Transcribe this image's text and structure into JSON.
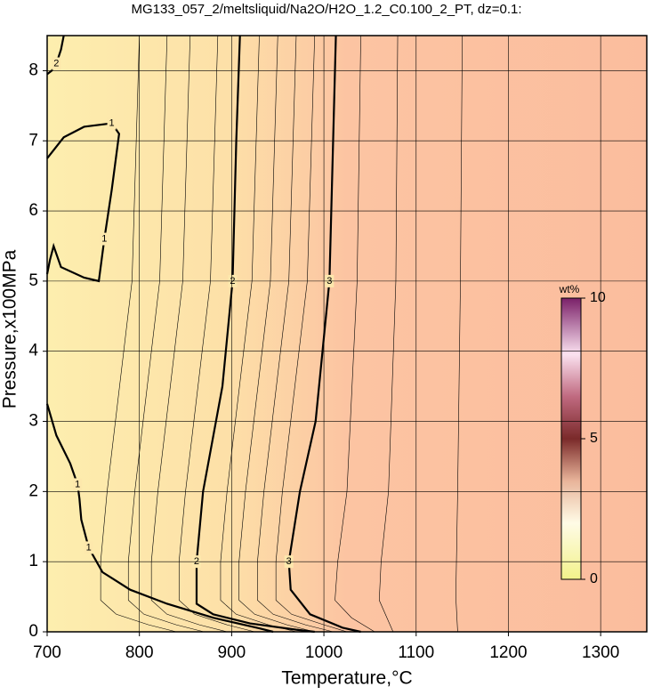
{
  "chart_data": {
    "type": "contour",
    "title": "MG133_057_2/meltsliquid/Na2O/H2O_1.2_C0.100_2_PT, dz=0.1:",
    "x_label": "Temperature,°C",
    "y_label": "Pressure,x100MPa",
    "xlim": [
      700,
      1350
    ],
    "ylim": [
      0,
      8.5
    ],
    "xticks": [
      700,
      800,
      900,
      1000,
      1100,
      1200,
      1300
    ],
    "yticks": [
      0,
      1,
      2,
      3,
      4,
      5,
      6,
      7,
      8
    ],
    "grid": true,
    "colorbar": {
      "label": "wt%",
      "lim": [
        0,
        10
      ],
      "ticks": [
        0,
        5,
        10
      ]
    },
    "contours": [
      {
        "level": 1,
        "x": [
          700,
          718,
          740,
          770,
          778,
          775,
          770,
          762,
          756,
          740,
          715,
          707,
          703,
          700
        ],
        "y": [
          6.75,
          7.05,
          7.2,
          7.25,
          7.1,
          6.8,
          6.3,
          5.6,
          5.0,
          5.05,
          5.2,
          5.5,
          5.3,
          5.1
        ]
      },
      {
        "level": 1,
        "x": [
          700,
          710,
          725,
          733,
          735,
          737,
          745,
          760,
          790,
          830,
          880,
          930,
          945
        ],
        "y": [
          3.25,
          2.8,
          2.4,
          2.1,
          1.9,
          1.6,
          1.2,
          0.85,
          0.6,
          0.4,
          0.2,
          0.05,
          0
        ]
      },
      {
        "level": 2,
        "x": [
          909,
          905,
          901,
          890,
          869,
          862,
          862,
          880,
          920,
          970,
          990
        ],
        "y": [
          8.5,
          7,
          5,
          3.5,
          2,
          1,
          0.4,
          0.25,
          0.12,
          0.03,
          0
        ]
      },
      {
        "level": 2,
        "x": [
          718,
          715,
          710,
          705,
          700
        ],
        "y": [
          8.5,
          8.3,
          8.1,
          8.0,
          7.95
        ]
      },
      {
        "level": 3,
        "x": [
          1013,
          1010,
          1006,
          991,
          974,
          962,
          964,
          985,
          1020,
          1040
        ],
        "y": [
          8.5,
          7,
          5,
          3,
          2,
          1,
          0.6,
          0.25,
          0.06,
          0
        ]
      }
    ],
    "minor_contours": [
      {
        "level": 1.2,
        "x": [
          800,
          792,
          765,
          758,
          758,
          775,
          810,
          840
        ],
        "y": [
          8.5,
          5,
          2,
          1,
          0.45,
          0.25,
          0.1,
          0
        ]
      },
      {
        "level": 1.4,
        "x": [
          830,
          822,
          795,
          788,
          788,
          805,
          840,
          870
        ],
        "y": [
          8.5,
          5,
          2,
          1,
          0.45,
          0.25,
          0.1,
          0
        ]
      },
      {
        "level": 1.6,
        "x": [
          855,
          847,
          820,
          813,
          813,
          830,
          865,
          895
        ],
        "y": [
          8.5,
          5,
          2,
          1,
          0.45,
          0.25,
          0.1,
          0
        ]
      },
      {
        "level": 1.8,
        "x": [
          885,
          877,
          850,
          843,
          843,
          860,
          895,
          925
        ],
        "y": [
          8.5,
          5,
          2,
          1,
          0.45,
          0.25,
          0.1,
          0
        ]
      },
      {
        "level": 2.2,
        "x": [
          930,
          922,
          895,
          888,
          888,
          905,
          940,
          970
        ],
        "y": [
          8.5,
          5,
          2,
          1,
          0.45,
          0.25,
          0.1,
          0
        ]
      },
      {
        "level": 2.4,
        "x": [
          950,
          942,
          915,
          908,
          908,
          925,
          960,
          990
        ],
        "y": [
          8.5,
          5,
          2,
          1,
          0.45,
          0.25,
          0.1,
          0
        ]
      },
      {
        "level": 2.6,
        "x": [
          970,
          962,
          935,
          928,
          928,
          945,
          980,
          1010
        ],
        "y": [
          8.5,
          5,
          2,
          1,
          0.45,
          0.25,
          0.1,
          0
        ]
      },
      {
        "level": 2.8,
        "x": [
          990,
          982,
          955,
          948,
          948,
          965,
          1000,
          1025
        ],
        "y": [
          8.5,
          5,
          2,
          1,
          0.45,
          0.25,
          0.1,
          0
        ]
      },
      {
        "level": 3.2,
        "x": [
          1040,
          1036,
          1025,
          1015,
          1012,
          1030,
          1055
        ],
        "y": [
          8.5,
          5,
          2,
          1,
          0.45,
          0.2,
          0
        ]
      },
      {
        "level": 3.4,
        "x": [
          1080,
          1078,
          1070,
          1062,
          1060,
          1075
        ],
        "y": [
          8.5,
          5,
          2,
          1,
          0.45,
          0
        ]
      },
      {
        "level": 3.6,
        "x": [
          1150,
          1148,
          1145,
          1143,
          1145
        ],
        "y": [
          8.5,
          5,
          2,
          0.5,
          0
        ]
      }
    ]
  }
}
